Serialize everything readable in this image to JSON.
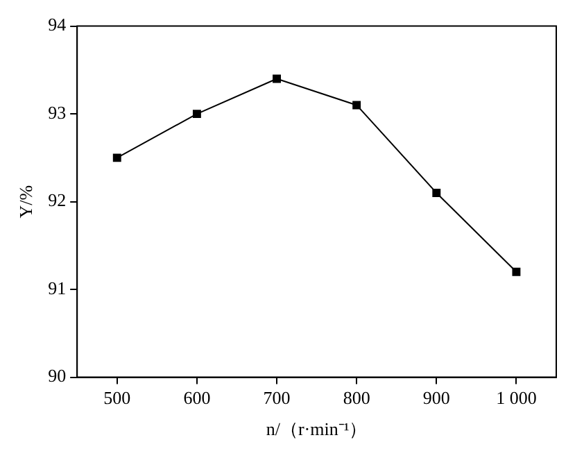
{
  "chart_data": {
    "type": "line",
    "xlabel": "n/（r·min⁻¹）",
    "ylabel": "Y/%",
    "x": [
      500,
      600,
      700,
      800,
      900,
      1000
    ],
    "series": [
      {
        "color": "#000000",
        "values": [
          92.5,
          93.0,
          93.4,
          93.1,
          92.1,
          91.2
        ]
      }
    ],
    "xlim": [
      450,
      1050
    ],
    "xticks": [
      500,
      600,
      700,
      800,
      900,
      {
        "value": 1000,
        "label": "1 000"
      }
    ],
    "ylim": [
      90,
      94
    ],
    "yticks": [
      90,
      91,
      92,
      93,
      94
    ],
    "marker": "square",
    "line_style": "solid",
    "grid": false,
    "legend": false
  }
}
